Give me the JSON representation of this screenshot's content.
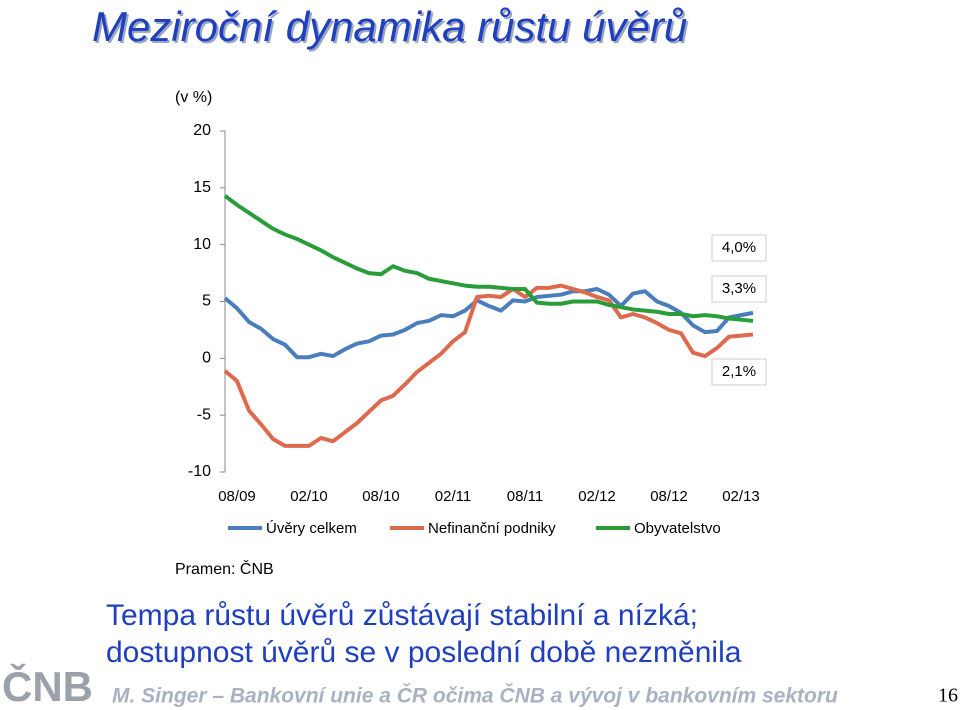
{
  "title": "Meziroční dynamika růstu úvěrů",
  "chart_data": {
    "type": "line",
    "unit_label": "(v %)",
    "source": "Pramen: ČNB",
    "categories": [
      null,
      "08/09",
      null,
      null,
      null,
      null,
      null,
      "02/10",
      null,
      null,
      null,
      null,
      null,
      "08/10",
      null,
      null,
      null,
      null,
      null,
      "02/11",
      null,
      null,
      null,
      null,
      null,
      "08/11",
      null,
      null,
      null,
      null,
      null,
      "02/12",
      null,
      null,
      null,
      null,
      null,
      "08/12",
      null,
      null,
      null,
      null,
      null,
      "02/13",
      null
    ],
    "series": [
      {
        "name": "Úvěry celkem",
        "color": "#4a7ebb",
        "values": [
          5.3,
          4.4,
          3.2,
          2.6,
          1.7,
          1.2,
          0.1,
          0.1,
          0.4,
          0.2,
          0.8,
          1.3,
          1.5,
          2.0,
          2.1,
          2.5,
          3.1,
          3.3,
          3.8,
          3.7,
          4.2,
          5.1,
          4.6,
          4.2,
          5.1,
          5.0,
          5.4,
          5.5,
          5.6,
          5.9,
          5.9,
          6.1,
          5.6,
          4.6,
          5.7,
          5.9,
          5.0,
          4.6,
          4.0,
          2.9,
          2.3,
          2.4,
          3.6,
          3.8,
          4.0
        ]
      },
      {
        "name": "Nefinanční podniky",
        "color": "#de6a4e",
        "values": [
          -1.1,
          -2.0,
          -4.6,
          -5.8,
          -7.1,
          -7.7,
          -7.7,
          -7.7,
          -7.0,
          -7.3,
          -6.5,
          -5.7,
          -4.7,
          -3.7,
          -3.3,
          -2.3,
          -1.2,
          -0.4,
          0.4,
          1.5,
          2.3,
          5.4,
          5.5,
          5.4,
          6.1,
          5.4,
          6.2,
          6.2,
          6.4,
          6.1,
          5.8,
          5.4,
          5.1,
          3.6,
          3.9,
          3.6,
          3.1,
          2.5,
          2.2,
          0.5,
          0.2,
          0.9,
          1.9,
          2.0,
          2.1
        ]
      },
      {
        "name": "Obyvatelstvo",
        "color": "#2a9d3a",
        "values": [
          14.3,
          13.5,
          12.8,
          12.1,
          11.4,
          10.9,
          10.5,
          10.0,
          9.5,
          8.9,
          8.4,
          7.9,
          7.5,
          7.4,
          8.1,
          7.7,
          7.5,
          7.0,
          6.8,
          6.6,
          6.4,
          6.3,
          6.3,
          6.2,
          6.1,
          6.1,
          4.9,
          4.8,
          4.8,
          5.0,
          5.0,
          5.0,
          4.7,
          4.5,
          4.3,
          4.2,
          4.1,
          3.9,
          3.9,
          3.7,
          3.8,
          3.7,
          3.5,
          3.4,
          3.3
        ]
      }
    ],
    "ylim": [
      -10,
      20
    ],
    "yticks": [
      -10,
      -5,
      0,
      5,
      10,
      15,
      20
    ],
    "annotations": [
      "4,0%",
      "3,3%",
      "2,1%"
    ]
  },
  "message": [
    "Tempa růstu úvěrů zůstávají stabilní a nízká;",
    "dostupnost úvěrů se v poslední době nezměnila"
  ],
  "footer": "M. Singer – Bankovní unie a ČR očima ČNB a vývoj v bankovním sektoru",
  "logo": "ČNB",
  "page_number": "16"
}
